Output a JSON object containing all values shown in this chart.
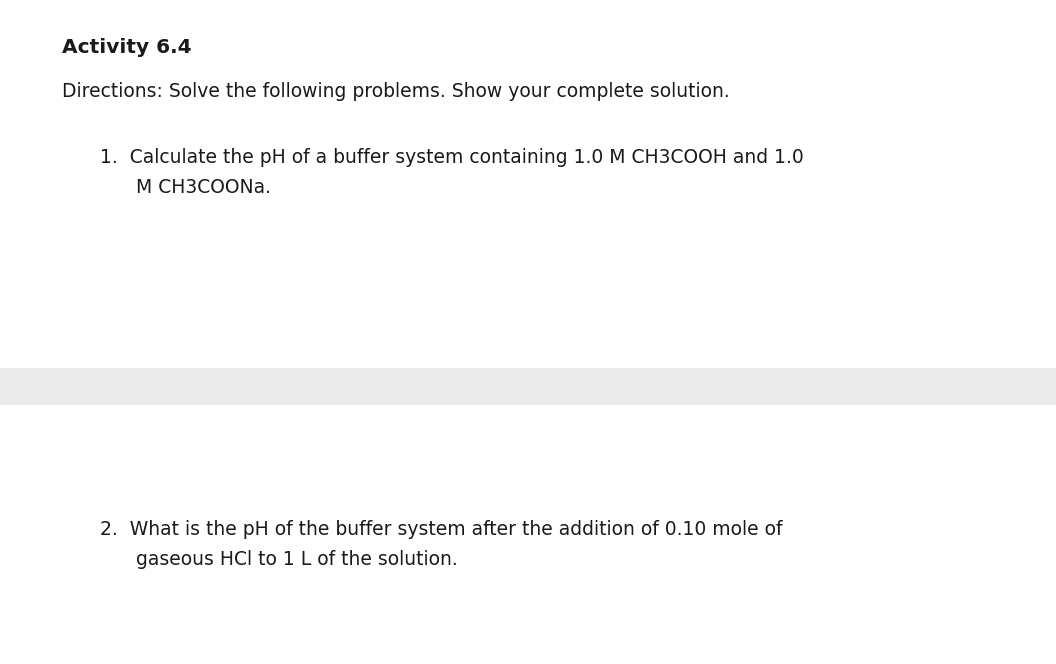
{
  "title": "Activity 6.4",
  "directions": "Directions: Solve the following problems. Show your complete solution.",
  "item1_line1": "1.  Calculate the pH of a buffer system containing 1.0 M CH3COOH and 1.0",
  "item1_line2": "      M CH3COONa.",
  "item2_line1": "2.  What is the pH of the buffer system after the addition of 0.10 mole of",
  "item2_line2": "      gaseous HCl to 1 L of the solution.",
  "bg_color": "#ffffff",
  "divider_band_color": "#ebebeb",
  "text_color": "#1a1a1a",
  "title_fontsize": 14.5,
  "body_fontsize": 13.5,
  "fig_width": 10.56,
  "fig_height": 6.64
}
